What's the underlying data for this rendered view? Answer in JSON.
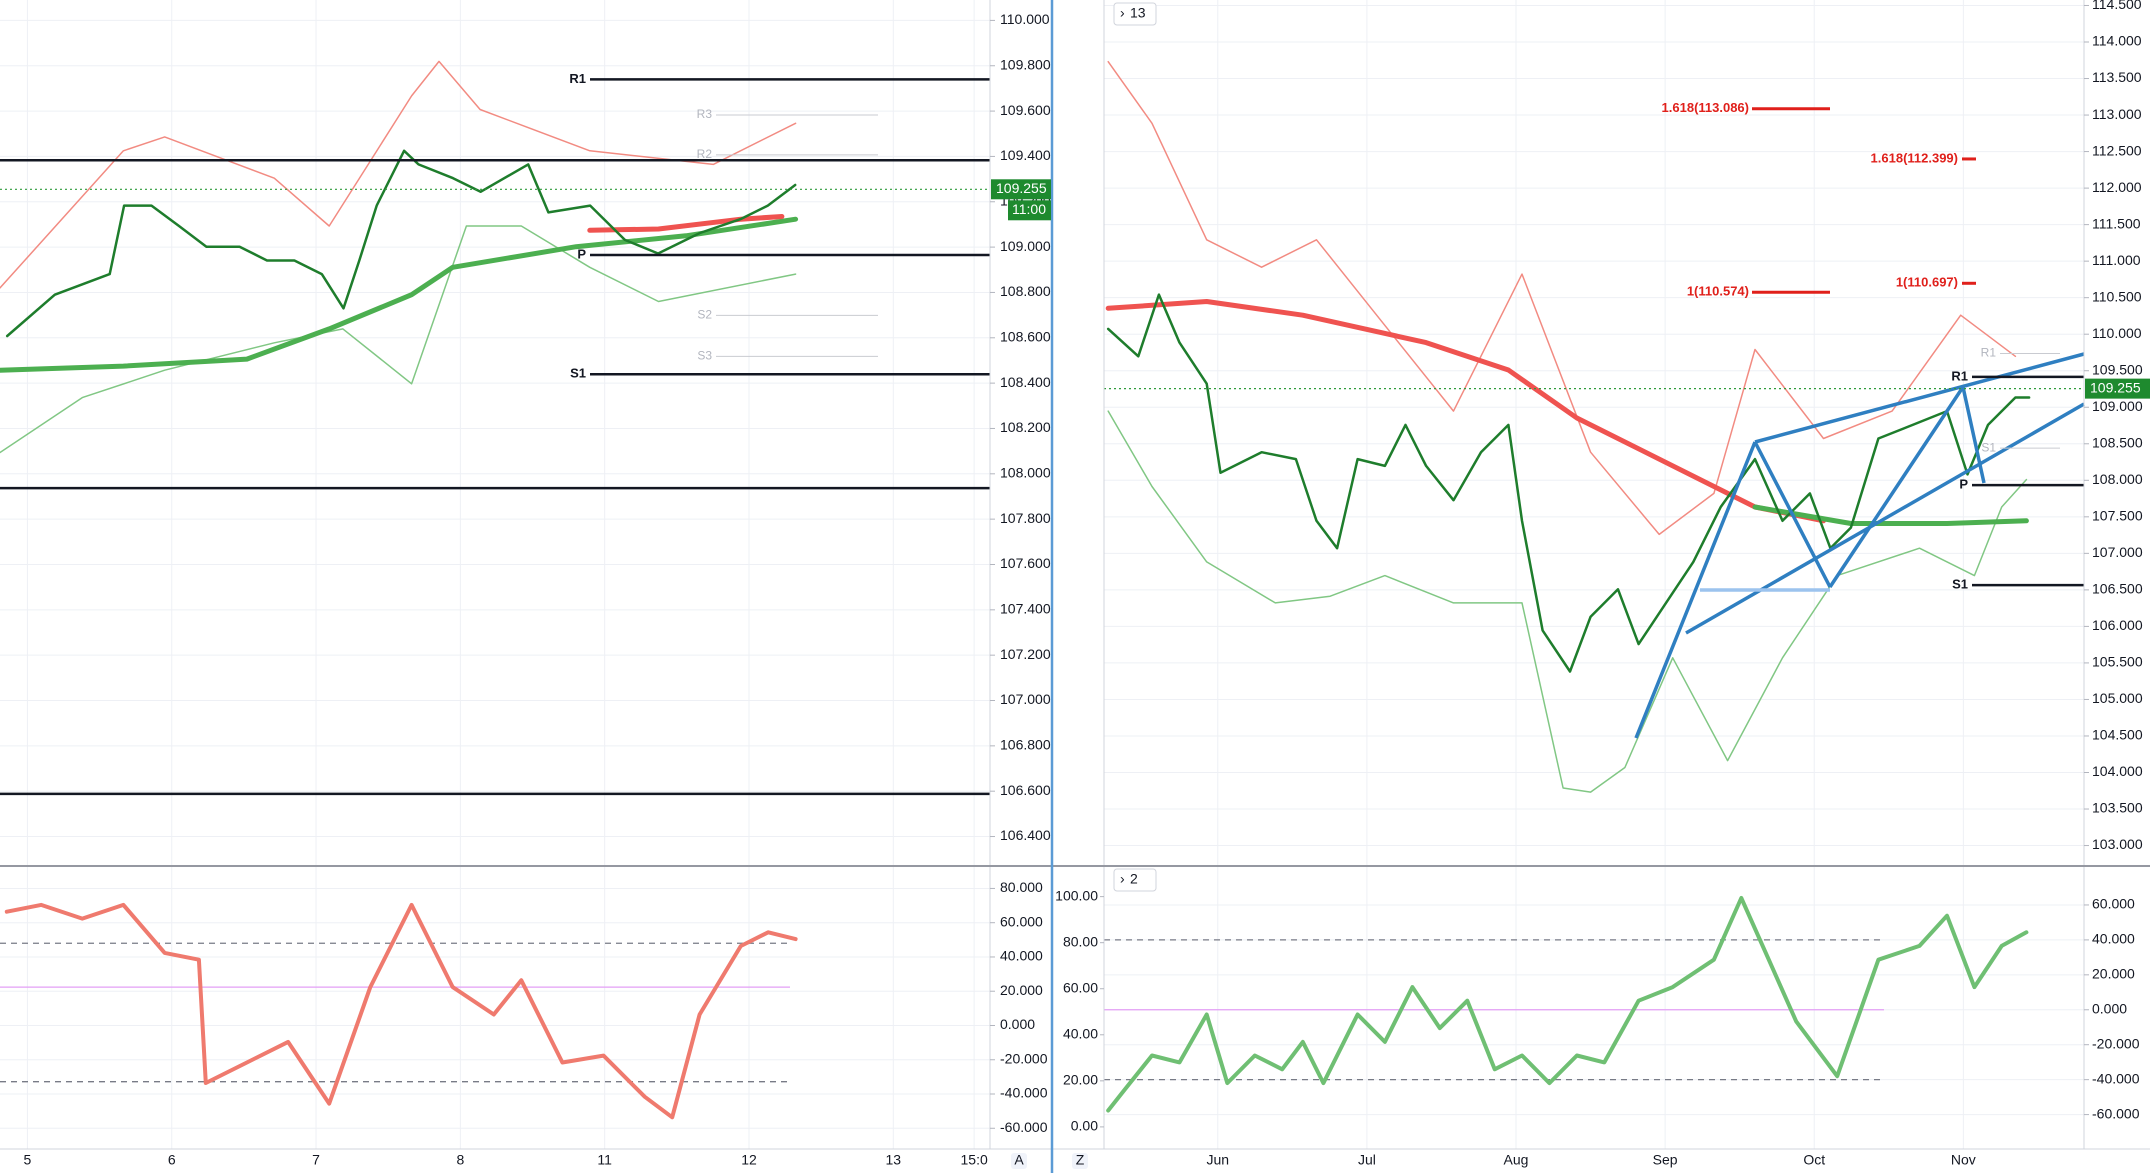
{
  "chart_data": [
    {
      "type": "line",
      "xlim": [
        -0.19,
        6.67
      ],
      "xticks": [
        {
          "value": 0,
          "label": "5"
        },
        {
          "value": 1,
          "label": "6"
        },
        {
          "value": 2,
          "label": "7"
        },
        {
          "value": 3,
          "label": "8"
        },
        {
          "value": 4,
          "label": "11"
        },
        {
          "value": 5,
          "label": "12"
        },
        {
          "value": 6,
          "label": "13"
        },
        {
          "value": 6.56,
          "label": "15:0"
        }
      ],
      "ylim": [
        106.27,
        110.09
      ],
      "yticks": [
        {
          "value": 110,
          "label": "110.000"
        },
        {
          "value": 109.8,
          "label": "109.800"
        },
        {
          "value": 109.6,
          "label": "109.600"
        },
        {
          "value": 109.4,
          "label": "109.400"
        },
        {
          "value": 109.2,
          "label": "109.200"
        },
        {
          "value": 109,
          "label": "109.000"
        },
        {
          "value": 108.8,
          "label": "108.800"
        },
        {
          "value": 108.6,
          "label": "108.600"
        },
        {
          "value": 108.4,
          "label": "108.400"
        },
        {
          "value": 108.2,
          "label": "108.200"
        },
        {
          "value": 108,
          "label": "108.000"
        },
        {
          "value": 107.8,
          "label": "107.800"
        },
        {
          "value": 107.6,
          "label": "107.600"
        },
        {
          "value": 107.4,
          "label": "107.400"
        },
        {
          "value": 107.2,
          "label": "107.200"
        },
        {
          "value": 107,
          "label": "107.000"
        },
        {
          "value": 106.8,
          "label": "106.800"
        },
        {
          "value": 106.6,
          "label": "106.600"
        },
        {
          "value": 106.4,
          "label": "106.400"
        }
      ],
      "grid": true,
      "series": [
        {
          "color": "#f28b82",
          "line_width": 1.5,
          "x": [
            -0.19,
            0.665,
            0.951,
            1.711,
            2.091,
            2.662,
            2.852,
            3.137,
            3.897,
            4.753,
            5.323
          ],
          "values": [
            108.82,
            109.425,
            109.486,
            109.304,
            109.093,
            109.667,
            109.819,
            109.607,
            109.425,
            109.365,
            109.546
          ]
        },
        {
          "color": "#81c784",
          "line_width": 1.5,
          "x": [
            -0.19,
            0.38,
            0.951,
            1.711,
            2.186,
            2.662,
            3.042,
            3.422,
            3.897,
            4.373,
            5.323
          ],
          "values": [
            108.094,
            108.336,
            108.457,
            108.578,
            108.639,
            108.397,
            109.093,
            109.093,
            108.911,
            108.76,
            108.881
          ]
        },
        {
          "color": "#4caf50",
          "line_width": 5,
          "x": [
            -0.19,
            0.665,
            1.521,
            2.091,
            2.662,
            2.947,
            3.802,
            4.563,
            5.323
          ],
          "values": [
            108.457,
            108.475,
            108.506,
            108.639,
            108.79,
            108.911,
            109.002,
            109.05,
            109.123
          ]
        },
        {
          "color": "#ef5350",
          "line_width": 5,
          "x": [
            3.897,
            4.373,
            4.943,
            5.228
          ],
          "values": [
            109.074,
            109.08,
            109.123,
            109.135
          ]
        },
        {
          "color": "#1e7d2c",
          "line_width": 2.5,
          "x": [
            -0.14,
            0.19,
            0.57,
            0.67,
            0.86,
            1.05,
            1.24,
            1.47,
            1.66,
            1.85,
            2.04,
            2.19,
            2.3,
            2.42,
            2.61,
            2.71,
            2.95,
            3.14,
            3.47,
            3.61,
            3.9,
            4.14,
            4.37,
            4.66,
            4.94,
            5.13,
            5.32
          ],
          "values": [
            108.608,
            108.79,
            108.881,
            109.183,
            109.183,
            109.093,
            109.002,
            109.002,
            108.941,
            108.941,
            108.881,
            108.73,
            108.941,
            109.183,
            109.425,
            109.365,
            109.304,
            109.244,
            109.365,
            109.153,
            109.183,
            109.032,
            108.972,
            109.062,
            109.123,
            109.183,
            109.274
          ]
        }
      ],
      "levels": [
        {
          "value": 109.74,
          "label": "R1"
        },
        109.383,
        {
          "value": 108.965,
          "label": "P"
        },
        {
          "value": 108.439,
          "label": "S1"
        },
        107.937,
        106.588
      ],
      "minor_levels": [
        {
          "value": 109.583,
          "label": "R3"
        },
        {
          "value": 109.407,
          "label": "R2"
        },
        {
          "value": 108.699,
          "label": "S2"
        },
        {
          "value": 108.518,
          "label": "S3"
        }
      ],
      "last_price": 109.255,
      "time_badge": "11:00",
      "scale_button": "A"
    },
    {
      "type": "line",
      "xlim": [
        0.237,
        6.809
      ],
      "xticks": [
        {
          "value": 1,
          "label": "Jun"
        },
        {
          "value": 2,
          "label": "Jul"
        },
        {
          "value": 3,
          "label": "Aug"
        },
        {
          "value": 4,
          "label": "Sep"
        },
        {
          "value": 5,
          "label": "Oct"
        },
        {
          "value": 6,
          "label": "Nov"
        }
      ],
      "ylim": [
        102.72,
        114.575
      ],
      "yticks": [
        {
          "value": 114.5,
          "label": "114.500"
        },
        {
          "value": 114,
          "label": "114.000"
        },
        {
          "value": 113.5,
          "label": "113.500"
        },
        {
          "value": 113,
          "label": "113.000"
        },
        {
          "value": 112.5,
          "label": "112.500"
        },
        {
          "value": 112,
          "label": "112.000"
        },
        {
          "value": 111.5,
          "label": "111.500"
        },
        {
          "value": 111,
          "label": "111.000"
        },
        {
          "value": 110.5,
          "label": "110.500"
        },
        {
          "value": 110,
          "label": "110.000"
        },
        {
          "value": 109.5,
          "label": "109.500"
        },
        {
          "value": 109,
          "label": "109.000"
        },
        {
          "value": 108.5,
          "label": "108.500"
        },
        {
          "value": 108,
          "label": "108.000"
        },
        {
          "value": 107.5,
          "label": "107.500"
        },
        {
          "value": 107,
          "label": "107.000"
        },
        {
          "value": 106.5,
          "label": "106.500"
        },
        {
          "value": 106,
          "label": "106.000"
        },
        {
          "value": 105.5,
          "label": "105.500"
        },
        {
          "value": 105,
          "label": "105.000"
        },
        {
          "value": 104.5,
          "label": "104.500"
        },
        {
          "value": 104,
          "label": "104.000"
        },
        {
          "value": 103.5,
          "label": "103.500"
        },
        {
          "value": 103,
          "label": "103.000"
        }
      ],
      "grid": true,
      "interval_label": "13",
      "series": [
        {
          "color": "#f28b82",
          "line_width": 1.5,
          "x": [
            0.265,
            0.559,
            0.926,
            1.294,
            1.662,
            2.029,
            2.581,
            3.04,
            3.5,
            3.96,
            4.327,
            4.603,
            5.062,
            5.522,
            5.982,
            6.349
          ],
          "values": [
            113.731,
            112.887,
            111.292,
            110.917,
            111.292,
            110.354,
            108.947,
            110.823,
            108.384,
            107.259,
            107.821,
            109.791,
            108.572,
            108.947,
            110.26,
            109.697
          ]
        },
        {
          "color": "#81c784",
          "line_width": 1.5,
          "x": [
            0.265,
            0.559,
            0.926,
            1.386,
            1.754,
            2.121,
            2.581,
            3.04,
            3.316,
            3.5,
            3.73,
            4.051,
            4.419,
            4.787,
            5.154,
            5.706,
            6.074,
            6.257,
            6.423
          ],
          "values": [
            108.947,
            107.915,
            106.883,
            106.321,
            106.414,
            106.696,
            106.321,
            106.321,
            103.788,
            103.732,
            104.069,
            105.57,
            104.163,
            105.57,
            106.696,
            107.071,
            106.696,
            107.634,
            108.009
          ]
        },
        {
          "color": "#ef5350",
          "line_width": 5,
          "x": [
            0.265,
            0.926,
            1.57,
            2.397,
            2.949,
            3.408,
            3.868,
            4.603,
            5.062
          ],
          "values": [
            110.354,
            110.448,
            110.26,
            109.885,
            109.51,
            108.853,
            108.384,
            107.634,
            107.446
          ]
        },
        {
          "color": "#4caf50",
          "line_width": 5,
          "x": [
            4.603,
            5.246,
            5.89,
            6.423
          ],
          "values": [
            107.634,
            107.409,
            107.409,
            107.446
          ]
        },
        {
          "color": "#1e7d2c",
          "line_width": 2.5,
          "x": [
            0.265,
            0.467,
            0.605,
            0.743,
            0.926,
            1.018,
            1.294,
            1.524,
            1.662,
            1.8,
            1.938,
            2.121,
            2.259,
            2.397,
            2.581,
            2.765,
            2.949,
            3.04,
            3.178,
            3.362,
            3.5,
            3.684,
            3.822,
            4.006,
            4.189,
            4.373,
            4.603,
            4.787,
            4.971,
            5.108,
            5.246,
            5.43,
            5.66,
            5.89,
            6.028,
            6.165,
            6.349,
            6.441
          ],
          "values": [
            110.073,
            109.697,
            110.542,
            109.885,
            109.322,
            108.103,
            108.384,
            108.29,
            107.446,
            107.071,
            108.29,
            108.197,
            108.759,
            108.197,
            107.728,
            108.384,
            108.759,
            107.446,
            105.945,
            105.383,
            106.133,
            106.508,
            105.758,
            106.321,
            106.883,
            107.634,
            108.29,
            107.446,
            107.821,
            107.071,
            107.352,
            108.572,
            108.759,
            108.947,
            108.081,
            108.759,
            109.134,
            109.134
          ]
        }
      ],
      "levels": [
        {
          "value": 109.416,
          "label": "R1"
        },
        {
          "value": 107.934,
          "label": "P"
        },
        {
          "value": 106.565,
          "label": "S1"
        }
      ],
      "minor_levels": [
        {
          "value": 109.735,
          "label": "R1"
        },
        {
          "value": 108.441,
          "label": "S1"
        }
      ],
      "fibs": [
        {
          "value": 113.086,
          "label": "1.618(113.086)"
        },
        {
          "value": 112.399,
          "label": "1.618(112.399)"
        },
        {
          "value": 110.574,
          "label": "1(110.574)"
        },
        {
          "value": 110.697,
          "label": "1(110.697)"
        }
      ],
      "last_price": 109.255,
      "scale_button": "Z"
    },
    {
      "type": "line",
      "xlim": [
        -0.19,
        6.67
      ],
      "ylim": [
        -72.1,
        93.1
      ],
      "yticks": [
        {
          "value": 80,
          "label": "80.000"
        },
        {
          "value": 60,
          "label": "60.000"
        },
        {
          "value": 40,
          "label": "40.000"
        },
        {
          "value": 20,
          "label": "20.000"
        },
        {
          "value": 0,
          "label": "0.000"
        },
        {
          "value": -20,
          "label": "-20.000"
        },
        {
          "value": -40,
          "label": "-40.000"
        },
        {
          "value": -60,
          "label": "-60.000"
        }
      ],
      "grid": true,
      "bands": [
        48,
        -32.8
      ],
      "midline": 22.4,
      "series": [
        {
          "color": "#ef7a6e",
          "line_width": 4,
          "x": [
            -0.143,
            0.095,
            0.38,
            0.665,
            0.951,
            1.188,
            1.236,
            1.521,
            1.806,
            2.091,
            2.376,
            2.662,
            2.947,
            3.232,
            3.422,
            3.707,
            3.992,
            4.278,
            4.468,
            4.658,
            4.943,
            5.133,
            5.323
          ],
          "values": [
            66.4,
            70.4,
            62.4,
            70.4,
            42.4,
            38.4,
            -33.6,
            -21.6,
            -9.6,
            -45.6,
            22.4,
            70.4,
            22.4,
            6.4,
            26.4,
            -21.6,
            -17.6,
            -41.6,
            -53.6,
            6.4,
            46.4,
            54.4,
            50.4
          ]
        }
      ]
    },
    {
      "type": "line",
      "xlim": [
        0.237,
        6.809
      ],
      "ylim": [
        -9.6,
        113.3
      ],
      "yticks": [
        {
          "value": 100,
          "label": "100.00"
        },
        {
          "value": 80,
          "label": "80.00"
        },
        {
          "value": 60,
          "label": "60.00"
        },
        {
          "value": 40,
          "label": "40.00"
        },
        {
          "value": 20,
          "label": "20.00"
        },
        {
          "value": 0,
          "label": "0.00"
        }
      ],
      "y2lim": [
        -79.7,
        82.3
      ],
      "y2ticks": [
        {
          "value": 60,
          "label": "60.000"
        },
        {
          "value": 40,
          "label": "40.000"
        },
        {
          "value": 20,
          "label": "20.000"
        },
        {
          "value": 0,
          "label": "0.000"
        },
        {
          "value": -20,
          "label": "-20.000"
        },
        {
          "value": -40,
          "label": "-40.000"
        },
        {
          "value": -60,
          "label": "-60.000"
        }
      ],
      "grid": true,
      "interval_label": "2",
      "bands": [
        40,
        -40
      ],
      "midline": 0,
      "series": [
        {
          "color": "#6fbf73",
          "line_width": 4,
          "x": [
            0.265,
            0.375,
            0.559,
            0.743,
            0.926,
            1.064,
            1.248,
            1.432,
            1.57,
            1.708,
            1.938,
            2.121,
            2.305,
            2.489,
            2.673,
            2.857,
            3.04,
            3.224,
            3.408,
            3.592,
            3.822,
            4.051,
            4.327,
            4.511,
            4.695,
            4.879,
            5.154,
            5.43,
            5.706,
            5.89,
            6.074,
            6.257,
            6.423
          ],
          "values": [
            7.1,
            16.1,
            31,
            28,
            48.8,
            19,
            31,
            25,
            36.9,
            19,
            48.8,
            36.9,
            60.7,
            42.9,
            54.8,
            25,
            31,
            19,
            31,
            28,
            54.8,
            60.7,
            72.6,
            99.4,
            72.6,
            45.8,
            22,
            72.6,
            78.6,
            91.7,
            60.7,
            78.6,
            84.5
          ]
        }
      ]
    }
  ]
}
